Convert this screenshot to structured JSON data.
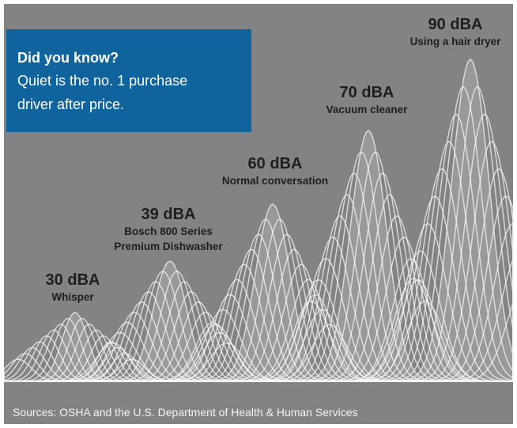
{
  "callout": {
    "title": "Did you know?",
    "lines": [
      "Quiet is the no. 1 purchase",
      "driver after price."
    ]
  },
  "levels": [
    {
      "value": "30 dBA",
      "lines": [
        "Whisper"
      ]
    },
    {
      "value": "39 dBA",
      "lines": [
        "Bosch 800 Series",
        "Premium Dishwasher"
      ]
    },
    {
      "value": "60 dBA",
      "lines": [
        "Normal conversation"
      ]
    },
    {
      "value": "70 dBA",
      "lines": [
        "Vacuum cleaner"
      ]
    },
    {
      "value": "90 dBA",
      "lines": [
        "Using a hair dryer"
      ]
    }
  ],
  "source": "Sources: OSHA and the U.S. Department of Health & Human Services"
}
